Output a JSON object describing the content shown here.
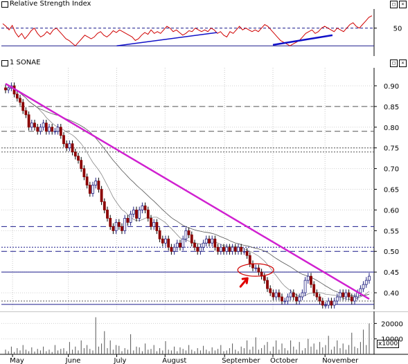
{
  "window": {
    "rsi_title": "Relative Strength Index",
    "main_title": "1 SONAE",
    "vol_unit": "x1000"
  },
  "chart_data": [
    {
      "type": "line",
      "title": "Relative Strength Index",
      "ylabel": "",
      "yticks": [
        50
      ],
      "reference_lines": [
        50,
        30
      ],
      "series": [
        {
          "values": [
            55,
            52,
            48,
            53,
            45,
            40,
            44,
            38,
            42,
            47,
            50,
            44,
            40,
            42,
            46,
            43,
            48,
            50,
            46,
            42,
            38,
            36,
            33,
            30,
            34,
            38,
            42,
            40,
            38,
            40,
            44,
            46,
            42,
            40,
            43,
            47,
            45,
            48,
            46,
            44,
            42,
            40,
            36,
            38,
            42,
            45,
            43,
            48,
            44,
            46,
            44,
            48,
            52,
            50,
            46,
            48,
            45,
            42,
            44,
            47,
            46,
            50,
            48,
            46,
            48,
            46,
            50,
            48,
            44,
            46,
            42,
            40,
            46,
            44,
            48,
            52,
            48,
            50,
            48,
            46,
            48,
            46,
            50,
            54,
            52,
            48,
            44,
            40,
            36,
            34,
            32,
            30,
            32,
            34,
            36,
            40,
            44,
            46,
            48,
            44,
            46,
            50,
            52,
            50,
            48,
            46,
            50,
            48,
            46,
            50,
            54,
            56,
            52,
            50,
            54,
            58,
            62,
            64
          ]
        }
      ],
      "trendlines": [
        {
          "name": "rsi-up-1",
          "from": [
            "Jul",
            30
          ],
          "to": [
            "Aug",
            45
          ]
        },
        {
          "name": "rsi-up-2",
          "from": [
            "Oct",
            31
          ],
          "to": [
            "Nov",
            42
          ]
        }
      ]
    },
    {
      "type": "candlestick",
      "title": "1 SONAE",
      "ylim": [
        0.365,
        0.92
      ],
      "yticks": [
        0.9,
        0.85,
        0.8,
        0.75,
        0.7,
        0.65,
        0.6,
        0.55,
        0.5,
        0.45,
        0.4
      ],
      "xlabels": [
        "May",
        "June",
        "July",
        "August",
        "September",
        "October",
        "November"
      ],
      "grid": true,
      "support_resistance": [
        0.85,
        0.79,
        0.75,
        0.74,
        0.56,
        0.51,
        0.5,
        0.45,
        0.38,
        0.372
      ],
      "trendline": {
        "from": 0.905,
        "to": 0.385
      },
      "close": [
        0.89,
        0.895,
        0.9,
        0.88,
        0.87,
        0.86,
        0.84,
        0.83,
        0.8,
        0.81,
        0.8,
        0.79,
        0.8,
        0.81,
        0.79,
        0.8,
        0.79,
        0.79,
        0.8,
        0.78,
        0.76,
        0.75,
        0.76,
        0.74,
        0.73,
        0.72,
        0.7,
        0.68,
        0.66,
        0.64,
        0.66,
        0.67,
        0.65,
        0.62,
        0.6,
        0.58,
        0.56,
        0.55,
        0.57,
        0.56,
        0.55,
        0.58,
        0.57,
        0.59,
        0.6,
        0.58,
        0.6,
        0.61,
        0.6,
        0.58,
        0.56,
        0.57,
        0.55,
        0.53,
        0.52,
        0.53,
        0.51,
        0.5,
        0.51,
        0.52,
        0.51,
        0.53,
        0.55,
        0.54,
        0.52,
        0.51,
        0.5,
        0.51,
        0.52,
        0.53,
        0.52,
        0.53,
        0.51,
        0.5,
        0.51,
        0.5,
        0.51,
        0.5,
        0.51,
        0.5,
        0.51,
        0.5,
        0.5,
        0.49,
        0.47,
        0.46,
        0.46,
        0.45,
        0.44,
        0.43,
        0.41,
        0.4,
        0.39,
        0.4,
        0.39,
        0.38,
        0.38,
        0.39,
        0.4,
        0.39,
        0.38,
        0.39,
        0.4,
        0.43,
        0.44,
        0.42,
        0.4,
        0.39,
        0.38,
        0.37,
        0.37,
        0.38,
        0.37,
        0.38,
        0.39,
        0.4,
        0.39,
        0.4,
        0.39,
        0.38,
        0.39,
        0.4,
        0.41,
        0.42,
        0.43,
        0.44
      ],
      "annotation": "circled-breakdown"
    },
    {
      "type": "bar",
      "title": "",
      "yticks": [
        10000,
        20000
      ],
      "ylim": [
        0,
        26000
      ],
      "unit": "x1000",
      "values": [
        3000,
        2000,
        5000,
        1500,
        4000,
        2500,
        6000,
        3000,
        2000,
        4500,
        1800,
        3500,
        2500,
        5000,
        2000,
        3000,
        1500,
        6000,
        2500,
        3500,
        4000,
        2000,
        8000,
        3000,
        5000,
        2500,
        9000,
        4000,
        6000,
        3500,
        2500,
        24000,
        5000,
        7000,
        15000,
        4000,
        9000,
        3000,
        6000,
        5500,
        2000,
        4000,
        3000,
        13000,
        2500,
        5000,
        4500,
        2000,
        7000,
        3000,
        3500,
        6000,
        2000,
        4000,
        2500,
        8500,
        3000,
        2500,
        5000,
        2000,
        4500,
        3500,
        2500,
        6000,
        3000,
        2000,
        4000,
        2500,
        5500,
        3000,
        2000,
        4500,
        2500,
        3500,
        6000,
        2000,
        2500,
        4000,
        7000,
        3000,
        2000,
        5000,
        4000,
        9000,
        3000,
        5000,
        11000,
        3000,
        4000,
        6000,
        8000,
        2000,
        5000,
        9000,
        3000,
        7000,
        4000,
        2500,
        9000,
        5000,
        3000,
        8000,
        2500,
        4000,
        10000,
        5000,
        7000,
        3000,
        8000,
        4500,
        6000,
        12000,
        3000,
        5000,
        9000,
        4000,
        7000,
        3000,
        6000,
        14000,
        5000,
        4000,
        8000,
        16000,
        6000,
        20000
      ]
    }
  ]
}
